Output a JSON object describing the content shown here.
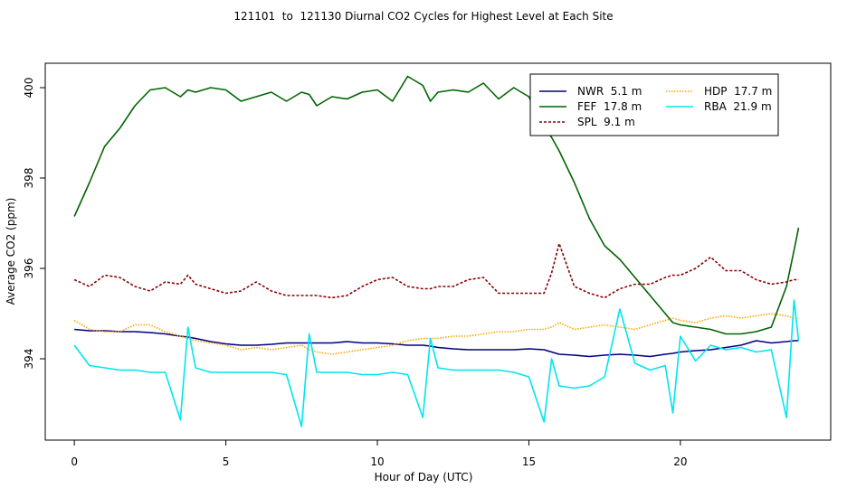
{
  "chart_data": {
    "type": "line",
    "title": "121101  to  121130 Diurnal CO2 Cycles for Highest Level at Each Site",
    "x_label": "Hour of Day (UTC)",
    "y_label": "Average CO2 (ppm)",
    "x": [
      0,
      0.5,
      1,
      1.5,
      2,
      2.5,
      3,
      3.5,
      3.75,
      4,
      4.5,
      5,
      5.5,
      6,
      6.5,
      7,
      7.5,
      7.75,
      8,
      8.5,
      9,
      9.5,
      10,
      10.5,
      11,
      11.5,
      11.75,
      12,
      12.5,
      13,
      13.5,
      14,
      14.5,
      15,
      15.5,
      15.75,
      16,
      16.5,
      17,
      17.5,
      18,
      18.5,
      19,
      19.5,
      19.75,
      20,
      20.5,
      21,
      21.5,
      22,
      22.5,
      23,
      23.5,
      23.75,
      23.9
    ],
    "xlim": [
      -0.96,
      24.96
    ],
    "xticks": [
      0,
      5,
      10,
      15,
      20
    ],
    "ylim": [
      392.2,
      400.54
    ],
    "yticks": [
      394,
      396,
      398,
      400
    ],
    "grid": false,
    "legend": "top-right",
    "series": [
      {
        "name": "NWR  5.1 m",
        "color": "#000080",
        "dash": "solid",
        "values": [
          394.65,
          394.62,
          394.62,
          394.6,
          394.6,
          394.58,
          394.55,
          394.5,
          394.48,
          394.45,
          394.38,
          394.33,
          394.3,
          394.3,
          394.32,
          394.35,
          394.35,
          394.35,
          394.35,
          394.35,
          394.38,
          394.35,
          394.35,
          394.33,
          394.3,
          394.3,
          394.28,
          394.25,
          394.22,
          394.2,
          394.2,
          394.2,
          394.2,
          394.22,
          394.2,
          394.15,
          394.1,
          394.08,
          394.05,
          394.08,
          394.1,
          394.08,
          394.05,
          394.1,
          394.12,
          394.15,
          394.18,
          394.2,
          394.25,
          394.3,
          394.4,
          394.35,
          394.38,
          394.4,
          394.4
        ]
      },
      {
        "name": "FEF  17.8 m",
        "color": "#006400",
        "dash": "solid",
        "values": [
          397.15,
          397.9,
          398.7,
          399.1,
          399.6,
          399.95,
          400.0,
          399.8,
          399.95,
          399.9,
          400.0,
          399.95,
          399.7,
          399.8,
          399.9,
          399.7,
          399.9,
          399.85,
          399.6,
          399.8,
          399.75,
          399.9,
          399.95,
          399.7,
          400.25,
          400.05,
          399.7,
          399.9,
          399.95,
          399.9,
          400.1,
          399.75,
          400.0,
          399.8,
          399.1,
          398.9,
          398.6,
          397.9,
          397.1,
          396.5,
          396.2,
          395.8,
          395.4,
          395.0,
          394.8,
          394.75,
          394.7,
          394.65,
          394.55,
          394.55,
          394.6,
          394.7,
          395.6,
          396.4,
          396.9
        ]
      },
      {
        "name": "SPL  9.1 m",
        "color": "#8b0000",
        "dash": "dashed",
        "values": [
          395.75,
          395.6,
          395.85,
          395.8,
          395.6,
          395.5,
          395.7,
          395.65,
          395.85,
          395.65,
          395.55,
          395.45,
          395.5,
          395.7,
          395.5,
          395.4,
          395.4,
          395.4,
          395.4,
          395.35,
          395.4,
          395.6,
          395.75,
          395.8,
          395.6,
          395.55,
          395.55,
          395.6,
          395.6,
          395.75,
          395.8,
          395.45,
          395.45,
          395.45,
          395.45,
          395.9,
          396.55,
          395.6,
          395.45,
          395.35,
          395.55,
          395.65,
          395.65,
          395.8,
          395.85,
          395.85,
          396.0,
          396.25,
          395.95,
          395.95,
          395.75,
          395.65,
          395.7,
          395.75,
          395.75
        ]
      },
      {
        "name": "HDP  17.7 m",
        "color": "#ffa500",
        "dash": "dotted",
        "values": [
          394.85,
          394.65,
          394.6,
          394.6,
          394.75,
          394.75,
          394.6,
          394.5,
          394.45,
          394.4,
          394.35,
          394.3,
          394.2,
          394.25,
          394.2,
          394.25,
          394.3,
          394.2,
          394.15,
          394.1,
          394.15,
          394.2,
          394.25,
          394.3,
          394.4,
          394.45,
          394.45,
          394.45,
          394.5,
          394.5,
          394.55,
          394.6,
          394.6,
          394.65,
          394.65,
          394.7,
          394.8,
          394.65,
          394.7,
          394.75,
          394.7,
          394.65,
          394.75,
          394.85,
          394.9,
          394.85,
          394.8,
          394.9,
          394.95,
          394.9,
          394.95,
          395.0,
          394.95,
          394.9,
          394.9
        ]
      },
      {
        "name": "RBA  21.9 m",
        "color": "#00e5ee",
        "dash": "solid",
        "values": [
          394.3,
          393.85,
          393.8,
          393.75,
          393.75,
          393.7,
          393.7,
          392.65,
          394.7,
          393.8,
          393.7,
          393.7,
          393.7,
          393.7,
          393.7,
          393.65,
          392.5,
          394.55,
          393.7,
          393.7,
          393.7,
          393.65,
          393.65,
          393.7,
          393.65,
          392.7,
          394.45,
          393.8,
          393.75,
          393.75,
          393.75,
          393.75,
          393.7,
          393.6,
          392.6,
          394.0,
          393.4,
          393.35,
          393.4,
          393.6,
          395.1,
          393.9,
          393.75,
          393.85,
          392.8,
          394.5,
          393.95,
          394.3,
          394.2,
          394.25,
          394.15,
          394.2,
          392.7,
          395.3,
          394.4
        ]
      }
    ]
  }
}
